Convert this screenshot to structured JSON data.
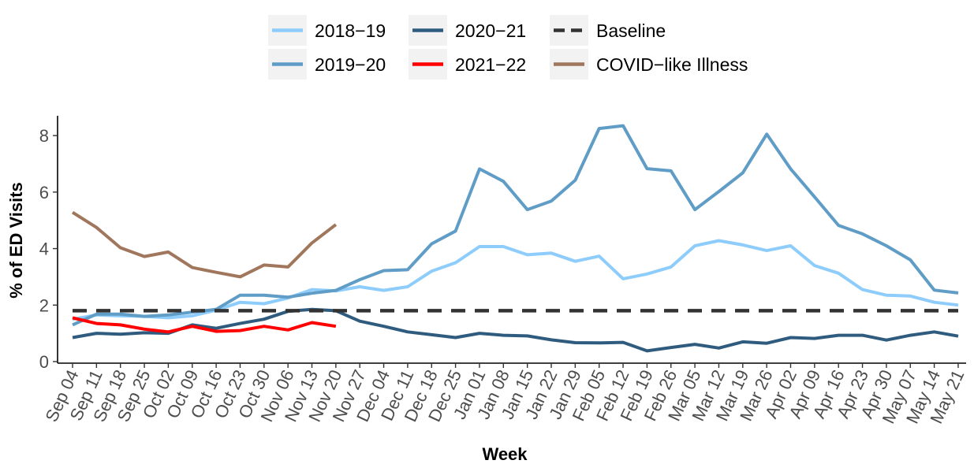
{
  "chart_data": {
    "type": "line",
    "xlabel": "Week",
    "ylabel": "% of ED Visits",
    "ylim": [
      0,
      8.7
    ],
    "yticks": [
      0,
      2,
      4,
      6,
      8
    ],
    "grid": false,
    "legend_position": "top",
    "categories": [
      "Sep 04",
      "Sep 11",
      "Sep 18",
      "Sep 25",
      "Oct 02",
      "Oct 09",
      "Oct 16",
      "Oct 23",
      "Oct 30",
      "Nov 06",
      "Nov 13",
      "Nov 20",
      "Nov 27",
      "Dec 04",
      "Dec 11",
      "Dec 18",
      "Dec 25",
      "Jan 01",
      "Jan 08",
      "Jan 15",
      "Jan 22",
      "Jan 29",
      "Feb 05",
      "Feb 12",
      "Feb 19",
      "Feb 26",
      "Mar 05",
      "Mar 12",
      "Mar 19",
      "Mar 26",
      "Apr 02",
      "Apr 09",
      "Apr 16",
      "Apr 23",
      "Apr 30",
      "May 07",
      "May 14",
      "May 21"
    ],
    "legend_order": [
      "2018−19",
      "2019−20",
      "2020−21",
      "2021−22",
      "Baseline",
      "COVID−like Illness"
    ],
    "series": [
      {
        "name": "2018−19",
        "color": "#8ecdfb",
        "dash": false,
        "values": [
          1.5,
          1.65,
          1.62,
          1.6,
          1.55,
          1.62,
          1.82,
          2.1,
          2.05,
          2.25,
          2.55,
          2.5,
          2.65,
          2.52,
          2.65,
          3.2,
          3.5,
          4.07,
          4.07,
          3.78,
          3.84,
          3.55,
          3.73,
          2.93,
          3.1,
          3.35,
          4.1,
          4.28,
          4.13,
          3.93,
          4.1,
          3.4,
          3.13,
          2.55,
          2.35,
          2.32,
          2.1,
          2.0
        ]
      },
      {
        "name": "2019−20",
        "color": "#5f9dc7",
        "dash": false,
        "values": [
          1.3,
          1.68,
          1.68,
          1.6,
          1.65,
          1.75,
          1.85,
          2.35,
          2.35,
          2.28,
          2.42,
          2.52,
          2.9,
          3.22,
          3.25,
          4.17,
          4.62,
          6.82,
          6.38,
          5.38,
          5.68,
          6.42,
          8.25,
          8.35,
          6.83,
          6.75,
          5.38,
          6.02,
          6.68,
          8.05,
          6.82,
          5.83,
          4.82,
          4.52,
          4.1,
          3.6,
          2.53,
          2.43
        ]
      },
      {
        "name": "2020−21",
        "color": "#2f5c7e",
        "dash": false,
        "values": [
          0.85,
          1.0,
          0.97,
          1.02,
          1.0,
          1.3,
          1.18,
          1.35,
          1.5,
          1.78,
          1.85,
          1.8,
          1.43,
          1.25,
          1.05,
          0.95,
          0.85,
          1.0,
          0.93,
          0.91,
          0.77,
          0.67,
          0.66,
          0.68,
          0.38,
          0.5,
          0.61,
          0.48,
          0.7,
          0.65,
          0.85,
          0.82,
          0.93,
          0.93,
          0.76,
          0.93,
          1.05,
          0.9
        ]
      },
      {
        "name": "2021−22",
        "color": "#ff0000",
        "dash": false,
        "values": [
          1.55,
          1.35,
          1.3,
          1.15,
          1.05,
          1.25,
          1.07,
          1.1,
          1.25,
          1.12,
          1.38,
          1.25,
          null,
          null,
          null,
          null,
          null,
          null,
          null,
          null,
          null,
          null,
          null,
          null,
          null,
          null,
          null,
          null,
          null,
          null,
          null,
          null,
          null,
          null,
          null,
          null,
          null,
          null
        ]
      },
      {
        "name": "Baseline",
        "color": "#333333",
        "dash": true,
        "values": [
          1.8,
          1.8,
          1.8,
          1.8,
          1.8,
          1.8,
          1.8,
          1.8,
          1.8,
          1.8,
          1.8,
          1.8,
          1.8,
          1.8,
          1.8,
          1.8,
          1.8,
          1.8,
          1.8,
          1.8,
          1.8,
          1.8,
          1.8,
          1.8,
          1.8,
          1.8,
          1.8,
          1.8,
          1.8,
          1.8,
          1.8,
          1.8,
          1.8,
          1.8,
          1.8,
          1.8,
          1.8,
          1.8
        ]
      },
      {
        "name": "COVID−like Illness",
        "color": "#a0765c",
        "dash": false,
        "values": [
          5.28,
          4.75,
          4.03,
          3.72,
          3.88,
          3.33,
          3.16,
          3.0,
          3.42,
          3.35,
          4.2,
          4.85,
          null,
          null,
          null,
          null,
          null,
          null,
          null,
          null,
          null,
          null,
          null,
          null,
          null,
          null,
          null,
          null,
          null,
          null,
          null,
          null,
          null,
          null,
          null,
          null,
          null,
          null
        ]
      }
    ]
  }
}
